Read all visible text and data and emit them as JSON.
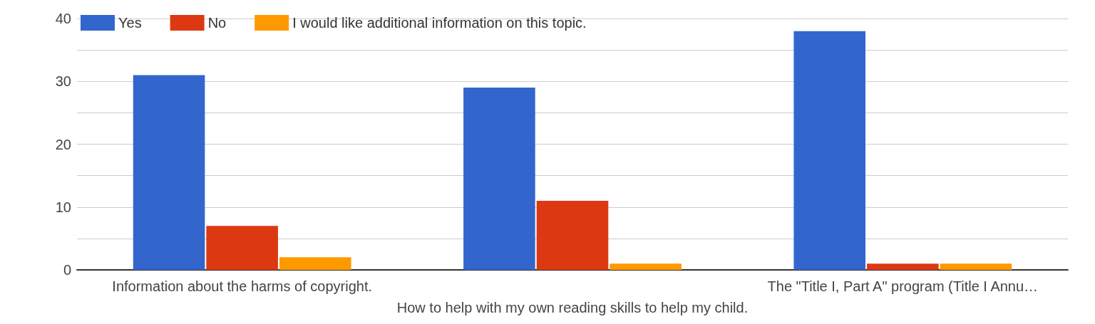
{
  "chart_data": {
    "type": "bar",
    "categories": [
      "Information about the harms of copyright.",
      "How to help with my own reading skills to help my child.",
      "The \"Title I, Part A\" program (Title I Annu…"
    ],
    "series": [
      {
        "name": "Yes",
        "color": "#3366cc",
        "values": [
          31,
          29,
          38
        ]
      },
      {
        "name": "No",
        "color": "#dc3912",
        "values": [
          7,
          11,
          1
        ]
      },
      {
        "name": "I would like additional information on this topic.",
        "color": "#ff9900",
        "values": [
          2,
          1,
          1
        ]
      }
    ],
    "ylim": [
      0,
      40
    ],
    "yticks": [
      0,
      {
        "value": 5,
        "label": null
      },
      10,
      {
        "value": 15,
        "label": null
      },
      20,
      {
        "value": 25,
        "label": null
      },
      30,
      {
        "value": 35,
        "label": null
      },
      40
    ],
    "grid": "y",
    "legend": "top left"
  }
}
